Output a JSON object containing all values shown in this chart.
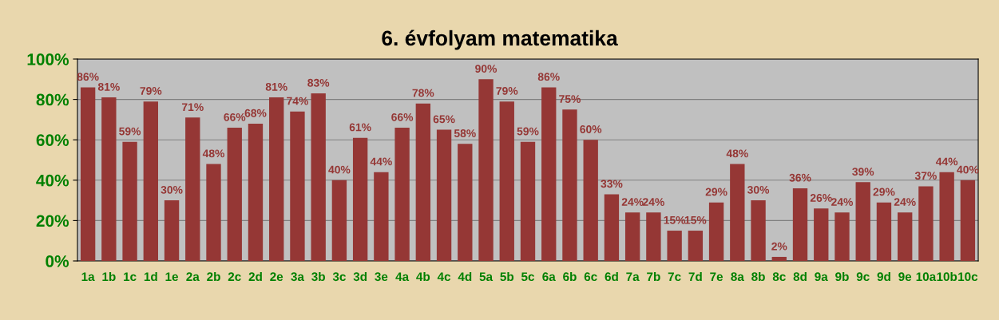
{
  "chart_data": {
    "type": "bar",
    "title": "6. évfolyam matematika",
    "categories": [
      "1a",
      "1b",
      "1c",
      "1d",
      "1e",
      "2a",
      "2b",
      "2c",
      "2d",
      "2e",
      "3a",
      "3b",
      "3c",
      "3d",
      "3e",
      "4a",
      "4b",
      "4c",
      "4d",
      "5a",
      "5b",
      "5c",
      "6a",
      "6b",
      "6c",
      "6d",
      "7a",
      "7b",
      "7c",
      "7d",
      "7e",
      "8a",
      "8b",
      "8c",
      "8d",
      "9a",
      "9b",
      "9c",
      "9d",
      "9e",
      "10a",
      "10b",
      "10c"
    ],
    "values": [
      86,
      81,
      59,
      79,
      30,
      71,
      48,
      66,
      68,
      81,
      74,
      83,
      40,
      61,
      44,
      66,
      78,
      65,
      58,
      90,
      79,
      59,
      86,
      75,
      60,
      33,
      24,
      24,
      15,
      15,
      29,
      48,
      30,
      2,
      36,
      26,
      24,
      39,
      29,
      24,
      37,
      44,
      40
    ],
    "value_labels": [
      "86%",
      "81%",
      "59%",
      "79%",
      "30%",
      "71%",
      "48%",
      "66%",
      "68%",
      "81%",
      "74%",
      "83%",
      "40%",
      "61%",
      "44%",
      "66%",
      "78%",
      "65%",
      "58%",
      "90%",
      "79%",
      "59%",
      "86%",
      "75%",
      "60%",
      "33%",
      "24%",
      "24%",
      "15%",
      "15%",
      "29%",
      "48%",
      "30%",
      "2%",
      "36%",
      "26%",
      "24%",
      "39%",
      "29%",
      "24%",
      "37%",
      "44%",
      "40%"
    ],
    "color": "#953735",
    "ylim": [
      0,
      100
    ],
    "yticks": [
      {
        "value": 0,
        "label": "0%"
      },
      {
        "value": 20,
        "label": "20%"
      },
      {
        "value": 40,
        "label": "40%"
      },
      {
        "value": 60,
        "label": "60%"
      },
      {
        "value": 80,
        "label": "80%"
      },
      {
        "value": 100,
        "label": "100%"
      }
    ],
    "grid": "y",
    "legend": false
  }
}
